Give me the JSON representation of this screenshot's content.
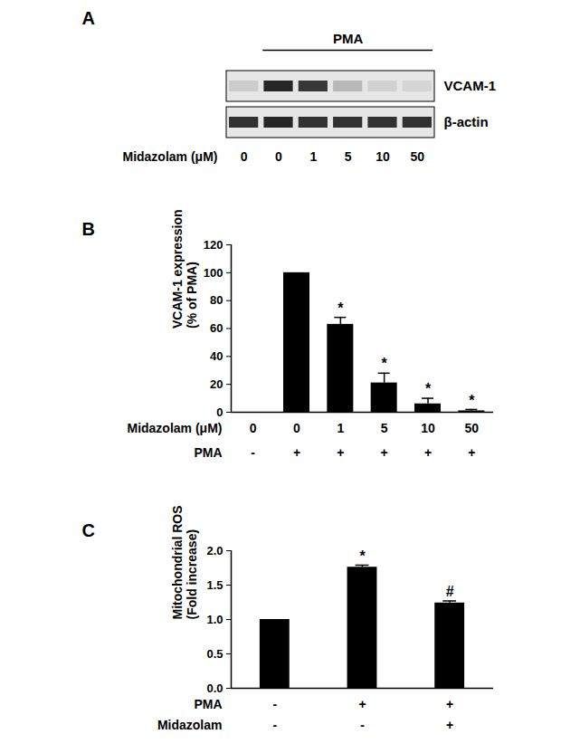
{
  "chart_data": [
    {
      "type": "blot",
      "title": "A",
      "treatment": {
        "label": "PMA",
        "lanes": [
          false,
          true,
          true,
          true,
          true,
          true
        ]
      },
      "x_rows": [
        {
          "label": "Midazolam (μM)",
          "values": [
            0,
            0,
            1,
            5,
            10,
            50
          ]
        }
      ],
      "bands": [
        {
          "name": "VCAM-1",
          "band_intensity": [
            0.12,
            0.9,
            0.82,
            0.22,
            0.1,
            0.08
          ]
        },
        {
          "name": "β-actin",
          "band_intensity": [
            0.85,
            0.9,
            0.85,
            0.85,
            0.85,
            0.85
          ]
        }
      ]
    },
    {
      "type": "bar",
      "title": "B",
      "y_label": "VCAM-1 expression\n(% of PMA)",
      "x_rows": [
        {
          "label": "Midazolam (μM)",
          "values": [
            0,
            0,
            1,
            5,
            10,
            50
          ]
        },
        {
          "label": "PMA",
          "values": [
            "-",
            "+",
            "+",
            "+",
            "+",
            "+"
          ]
        }
      ],
      "values": [
        0,
        100,
        63,
        21,
        6,
        1
      ],
      "errors": [
        0,
        0,
        5,
        7,
        4,
        1
      ],
      "annotations": [
        null,
        null,
        "*",
        "*",
        "*",
        "*"
      ],
      "color": "#000000",
      "ylim": [
        0,
        120
      ],
      "yticks": [
        0,
        20,
        40,
        60,
        80,
        100,
        120
      ]
    },
    {
      "type": "bar",
      "title": "C",
      "y_label": "Mitochondrial ROS\n(Fold increase)",
      "x_rows": [
        {
          "label": "PMA",
          "values": [
            "-",
            "+",
            "+"
          ]
        },
        {
          "label": "Midazolam",
          "values": [
            "-",
            "-",
            "+"
          ]
        }
      ],
      "values": [
        1.0,
        1.76,
        1.24
      ],
      "errors": [
        0,
        0.03,
        0.03
      ],
      "annotations": [
        null,
        "*",
        "#"
      ],
      "color": "#000000",
      "ylim": [
        0,
        2.0
      ],
      "yticks": [
        {
          "value": 0,
          "label": "0.0"
        },
        {
          "value": 0.5,
          "label": "0.5"
        },
        {
          "value": 1,
          "label": "1.0"
        },
        {
          "value": 1.5,
          "label": "1.5"
        },
        {
          "value": 2,
          "label": "2.0"
        }
      ]
    }
  ]
}
